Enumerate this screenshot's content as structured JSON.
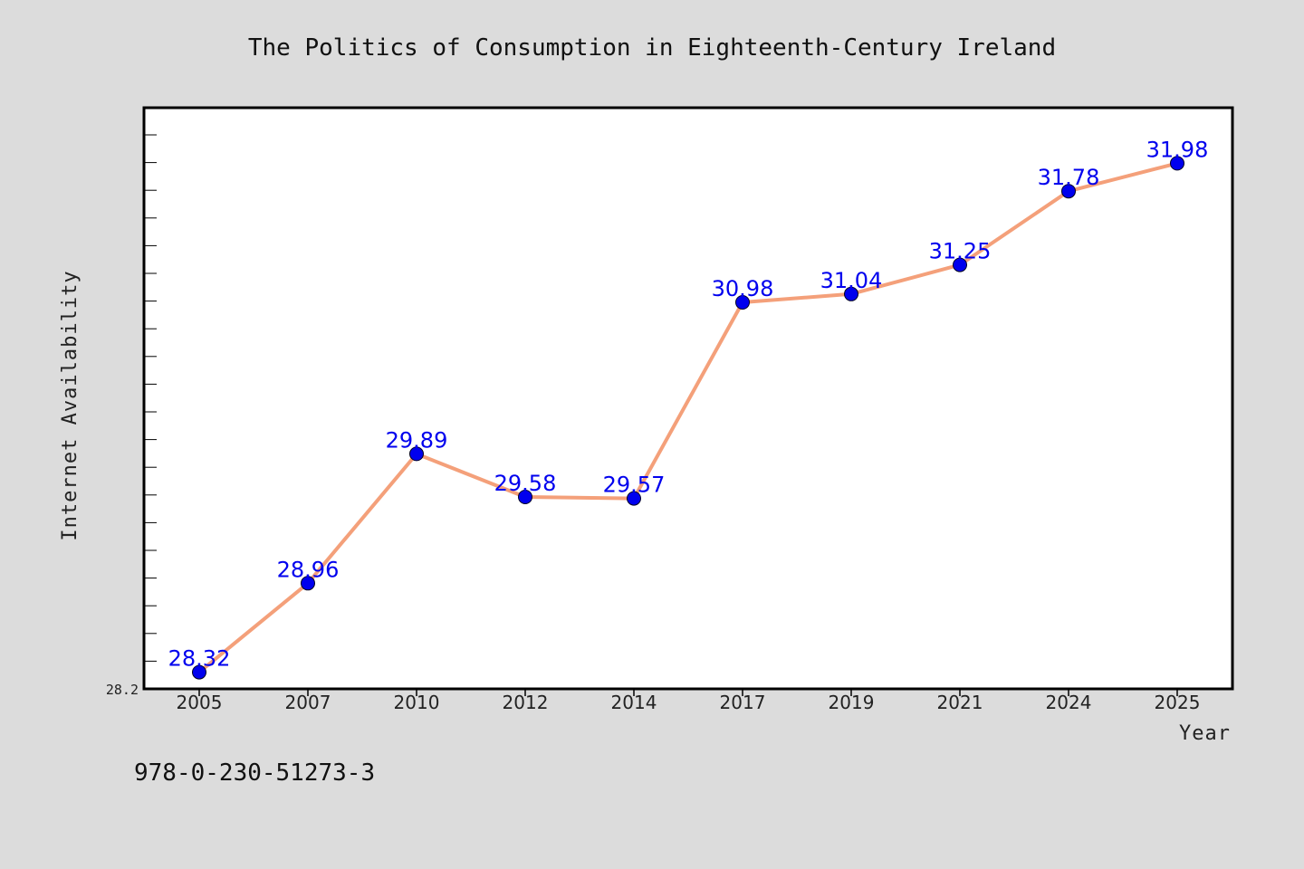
{
  "chart_data": {
    "type": "line",
    "title": "The Politics of Consumption in Eighteenth-Century Ireland",
    "xlabel": "Year",
    "ylabel": "Internet Availability",
    "categories": [
      "2005",
      "2007",
      "2010",
      "2012",
      "2014",
      "2017",
      "2019",
      "2021",
      "2024",
      "2025"
    ],
    "series": [
      {
        "values": [
          28.32,
          28.96,
          29.89,
          29.58,
          29.57,
          30.98,
          31.04,
          31.25,
          31.78,
          31.98
        ],
        "labels": [
          "28.32",
          "28.96",
          "29.89",
          "29.58",
          "29.57",
          "30.98",
          "31.04",
          "31.25",
          "31.78",
          "31.98"
        ],
        "line_color": "#f4a07a",
        "marker_color": "#0000ee"
      }
    ],
    "ylim": [
      28.2,
      32.38
    ],
    "y_tick_labels": [
      "28.2"
    ],
    "grid": false,
    "plot_background": "#ffffff",
    "figure_background": "#dcdcdc"
  },
  "footer": {
    "isbn": "978-0-230-51273-3"
  }
}
